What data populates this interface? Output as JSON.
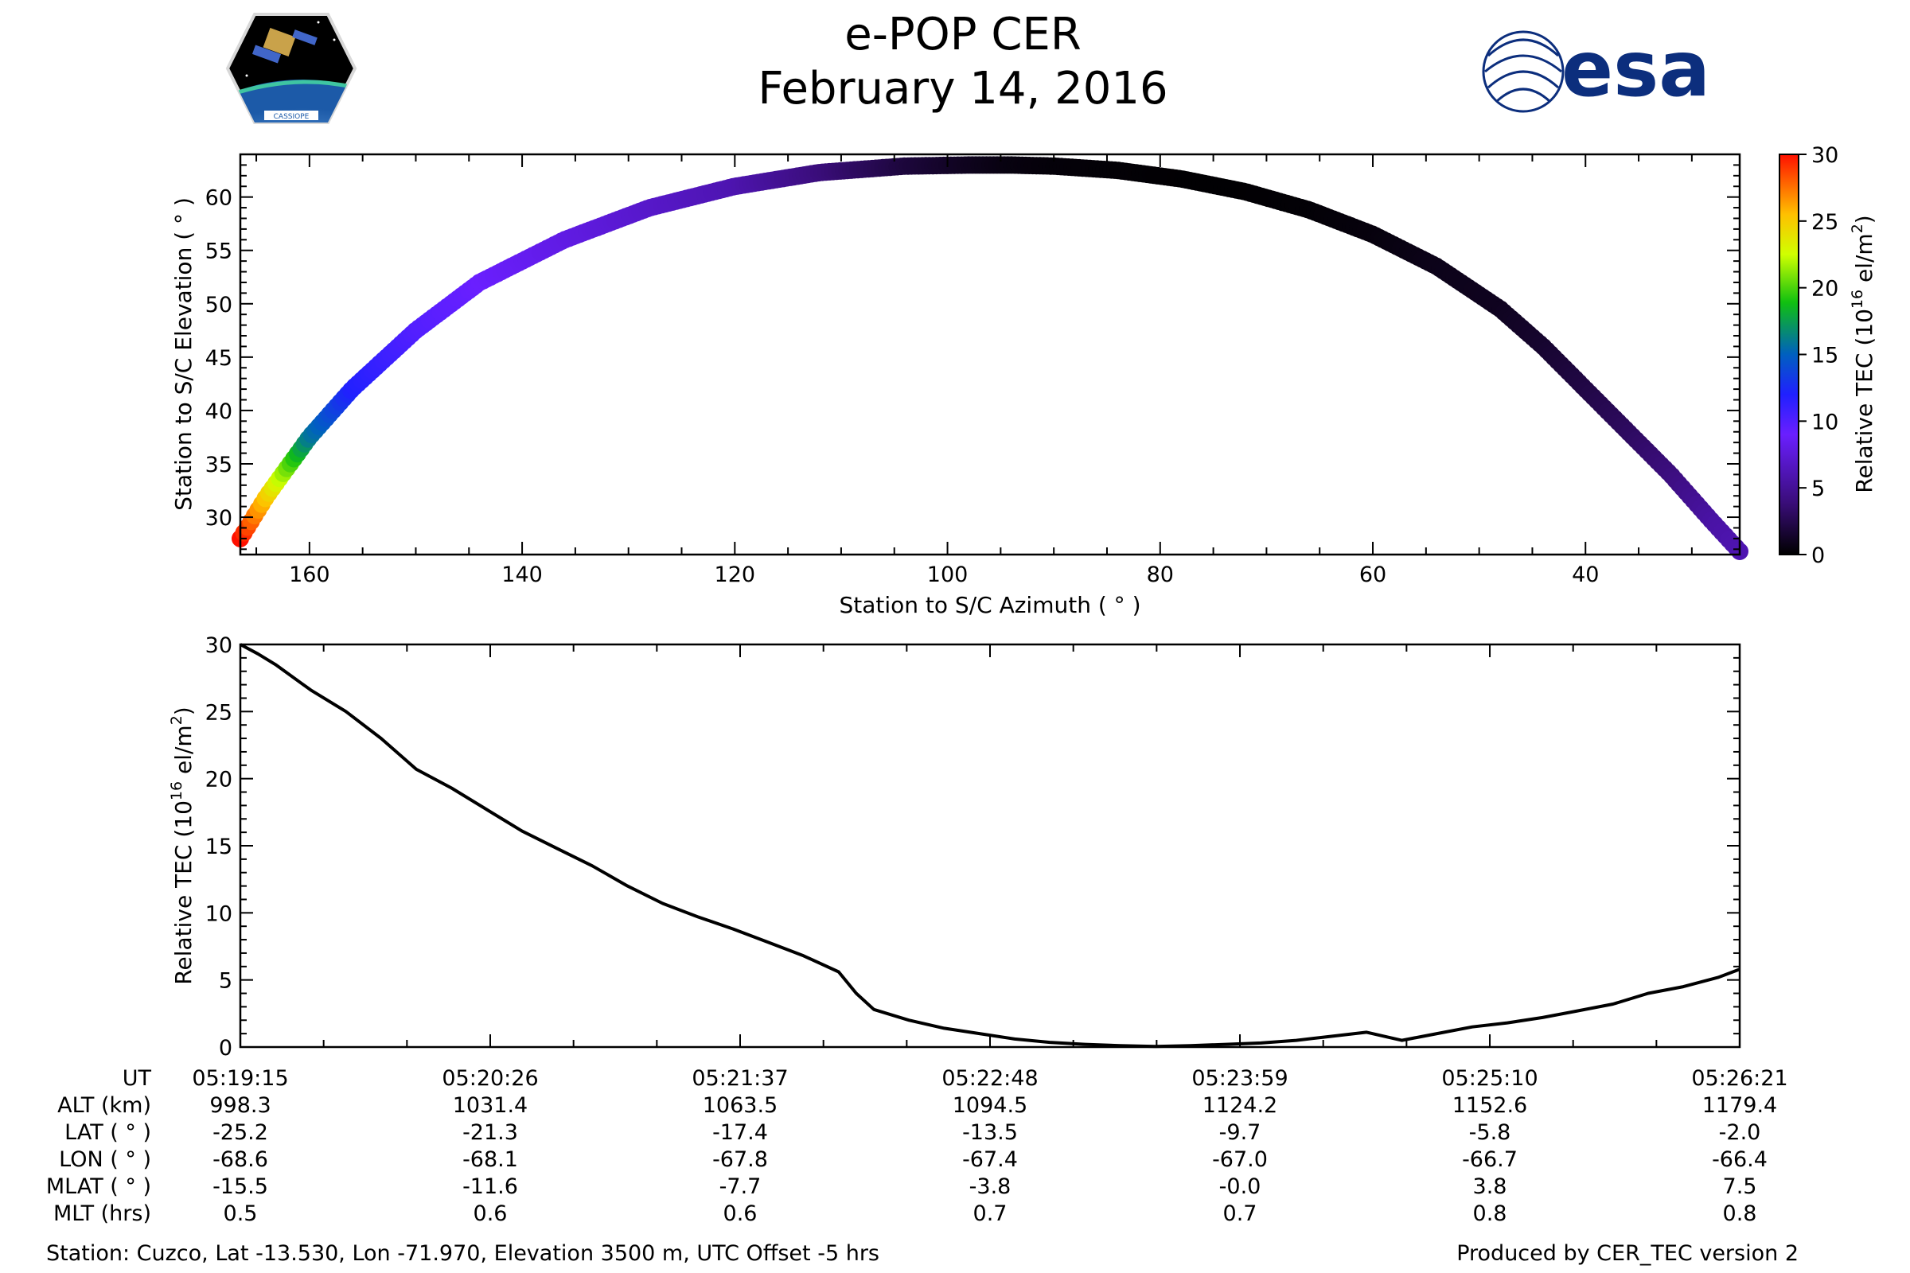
{
  "header": {
    "title_line1": "e-POP CER",
    "title_line2": "February 14, 2016",
    "left_logo": {
      "icon": "cassiope-mission-logo",
      "text": "CASSIOPE"
    },
    "right_logo": {
      "icon": "esa-logo",
      "text": "esa",
      "color": "#0c2e7d"
    }
  },
  "chart_data": [
    {
      "type": "scatter",
      "xlabel": "Station to S/C Azimuth ( ° )",
      "ylabel": "Station to S/C Elevation ( ° )",
      "xlim": [
        166.5,
        25.5
      ],
      "ylim": [
        26.5,
        64
      ],
      "x_ticks": [
        160,
        140,
        120,
        100,
        80,
        60,
        40
      ],
      "y_ticks": [
        30,
        35,
        40,
        45,
        50,
        55,
        60
      ],
      "color_by": "Relative TEC",
      "colormap": "gnuplot2_r-like",
      "colorbar": {
        "label": "Relative TEC (10^16 el/m^2)",
        "label_base": "Relative TEC (10",
        "label_exp": "16",
        "label_unit": " el/m",
        "label_exp2": "2",
        "label_close": ")",
        "range": [
          0,
          30
        ],
        "ticks": [
          0,
          5,
          10,
          15,
          20,
          25,
          30
        ]
      },
      "series": [
        {
          "azimuth": [
            166.5,
            164,
            160,
            156,
            150,
            144,
            136,
            128,
            120,
            112,
            104,
            98,
            94,
            90,
            84,
            78,
            72,
            66,
            60,
            54,
            48,
            44,
            40,
            36,
            32,
            28,
            25.5
          ],
          "elevation": [
            28,
            32,
            37.5,
            42,
            47.5,
            52,
            56,
            59,
            61,
            62.3,
            62.9,
            63,
            63,
            62.9,
            62.5,
            61.7,
            60.5,
            58.8,
            56.5,
            53.5,
            49.5,
            46,
            42,
            38,
            34,
            29.5,
            26.8
          ],
          "tec": [
            30,
            25,
            16,
            12,
            10,
            9,
            8,
            7,
            6,
            4,
            2,
            1,
            0.5,
            0.3,
            0.2,
            0.1,
            0.1,
            0.2,
            0.4,
            0.8,
            1,
            1.5,
            2.2,
            3,
            4,
            5.5,
            6
          ]
        }
      ]
    },
    {
      "type": "line",
      "ylabel": "Relative TEC (10^16 el/m^2)",
      "ylabel_parts": {
        "base": "Relative TEC (10",
        "exp": "16",
        "unit": " el/m",
        "exp2": "2",
        "close": ")"
      },
      "x_unit": "seconds after 05:19:15",
      "xlim": [
        0,
        426
      ],
      "ylim": [
        0,
        30
      ],
      "y_ticks": [
        0,
        5,
        10,
        15,
        20,
        25,
        30
      ],
      "series": [
        {
          "name": "Relative TEC",
          "x": [
            0,
            5,
            10,
            20,
            30,
            40,
            50,
            60,
            70,
            80,
            90,
            100,
            110,
            120,
            130,
            140,
            150,
            160,
            170,
            175,
            180,
            190,
            200,
            210,
            220,
            230,
            240,
            250,
            260,
            270,
            280,
            290,
            300,
            310,
            320,
            330,
            340,
            350,
            360,
            370,
            380,
            390,
            400,
            410,
            420,
            426
          ],
          "y": [
            30,
            29.3,
            28.5,
            26.6,
            25.0,
            23.0,
            20.7,
            19.3,
            17.7,
            16.1,
            14.8,
            13.5,
            12.0,
            10.7,
            9.7,
            8.8,
            7.8,
            6.8,
            5.6,
            4.0,
            2.8,
            2.0,
            1.4,
            1.0,
            0.6,
            0.35,
            0.2,
            0.1,
            0.05,
            0.1,
            0.2,
            0.3,
            0.5,
            0.8,
            1.1,
            0.5,
            1.0,
            1.5,
            1.8,
            2.2,
            2.7,
            3.2,
            4.0,
            4.5,
            5.2,
            5.8
          ]
        }
      ]
    }
  ],
  "ephemeris_table": {
    "row_labels": [
      "UT",
      "ALT (km)",
      "LAT ( ° )",
      "LON ( ° )",
      "MLAT ( ° )",
      "MLT (hrs)"
    ],
    "columns": [
      [
        "05:19:15",
        "998.3",
        "-25.2",
        "-68.6",
        "-15.5",
        "0.5"
      ],
      [
        "05:20:26",
        "1031.4",
        "-21.3",
        "-68.1",
        "-11.6",
        "0.6"
      ],
      [
        "05:21:37",
        "1063.5",
        "-17.4",
        "-67.8",
        "-7.7",
        "0.6"
      ],
      [
        "05:22:48",
        "1094.5",
        "-13.5",
        "-67.4",
        "-3.8",
        "0.7"
      ],
      [
        "05:23:59",
        "1124.2",
        "-9.7",
        "-67.0",
        "-0.0",
        "0.7"
      ],
      [
        "05:25:10",
        "1152.6",
        "-5.8",
        "-66.7",
        "3.8",
        "0.8"
      ],
      [
        "05:26:21",
        "1179.4",
        "-2.0",
        "-66.4",
        "7.5",
        "0.8"
      ]
    ]
  },
  "footer": {
    "station": "Station: Cuzco, Lat -13.530, Lon -71.970, Elevation 3500 m, UTC Offset -5 hrs",
    "produced_by": "Produced by CER_TEC version 2"
  }
}
